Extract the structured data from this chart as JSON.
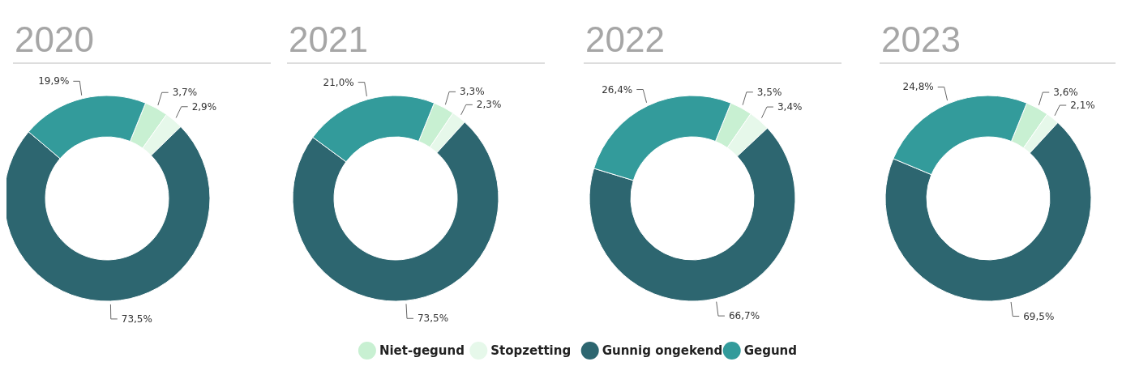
{
  "chart_data": [
    {
      "type": "donut",
      "title": "2020",
      "categories": [
        "Niet-gegund",
        "Stopzetting",
        "Gunnig ongekend",
        "Gegund"
      ],
      "values": [
        3.7,
        2.9,
        73.5,
        19.9
      ],
      "colors": [
        "#c8f0d2",
        "#e6f8ea",
        "#2d6670",
        "#339b9b"
      ],
      "value_labels": [
        "3,7%",
        "2,9%",
        "73,5%",
        "19,9%"
      ],
      "legend": "bottom"
    },
    {
      "type": "donut",
      "title": "2021",
      "categories": [
        null,
        null,
        null,
        null
      ],
      "values": [
        3.3,
        2.3,
        73.5,
        21.0
      ],
      "colors": [
        "#c8f0d2",
        "#e6f8ea",
        "#2d6670",
        "#339b9b"
      ],
      "value_labels": [
        "3,3%",
        "2,3%",
        "73,5%",
        "21,0%"
      ]
    },
    {
      "type": "donut",
      "title": "2022",
      "categories": [
        null,
        null,
        null,
        null
      ],
      "values": [
        3.5,
        3.4,
        66.7,
        26.4
      ],
      "colors": [
        "#c8f0d2",
        "#e6f8ea",
        "#2d6670",
        "#339b9b"
      ],
      "value_labels": [
        "3,5%",
        "3,4%",
        "66,7%",
        "26,4%"
      ]
    },
    {
      "type": "donut",
      "title": "2023",
      "categories": [
        null,
        null,
        null,
        null
      ],
      "values": [
        3.6,
        2.1,
        69.5,
        24.8
      ],
      "colors": [
        "#c8f0d2",
        "#e6f8ea",
        "#2d6670",
        "#339b9b"
      ],
      "value_labels": [
        "3,6%",
        "2,1%",
        "69,5%",
        "24,8%"
      ]
    }
  ]
}
